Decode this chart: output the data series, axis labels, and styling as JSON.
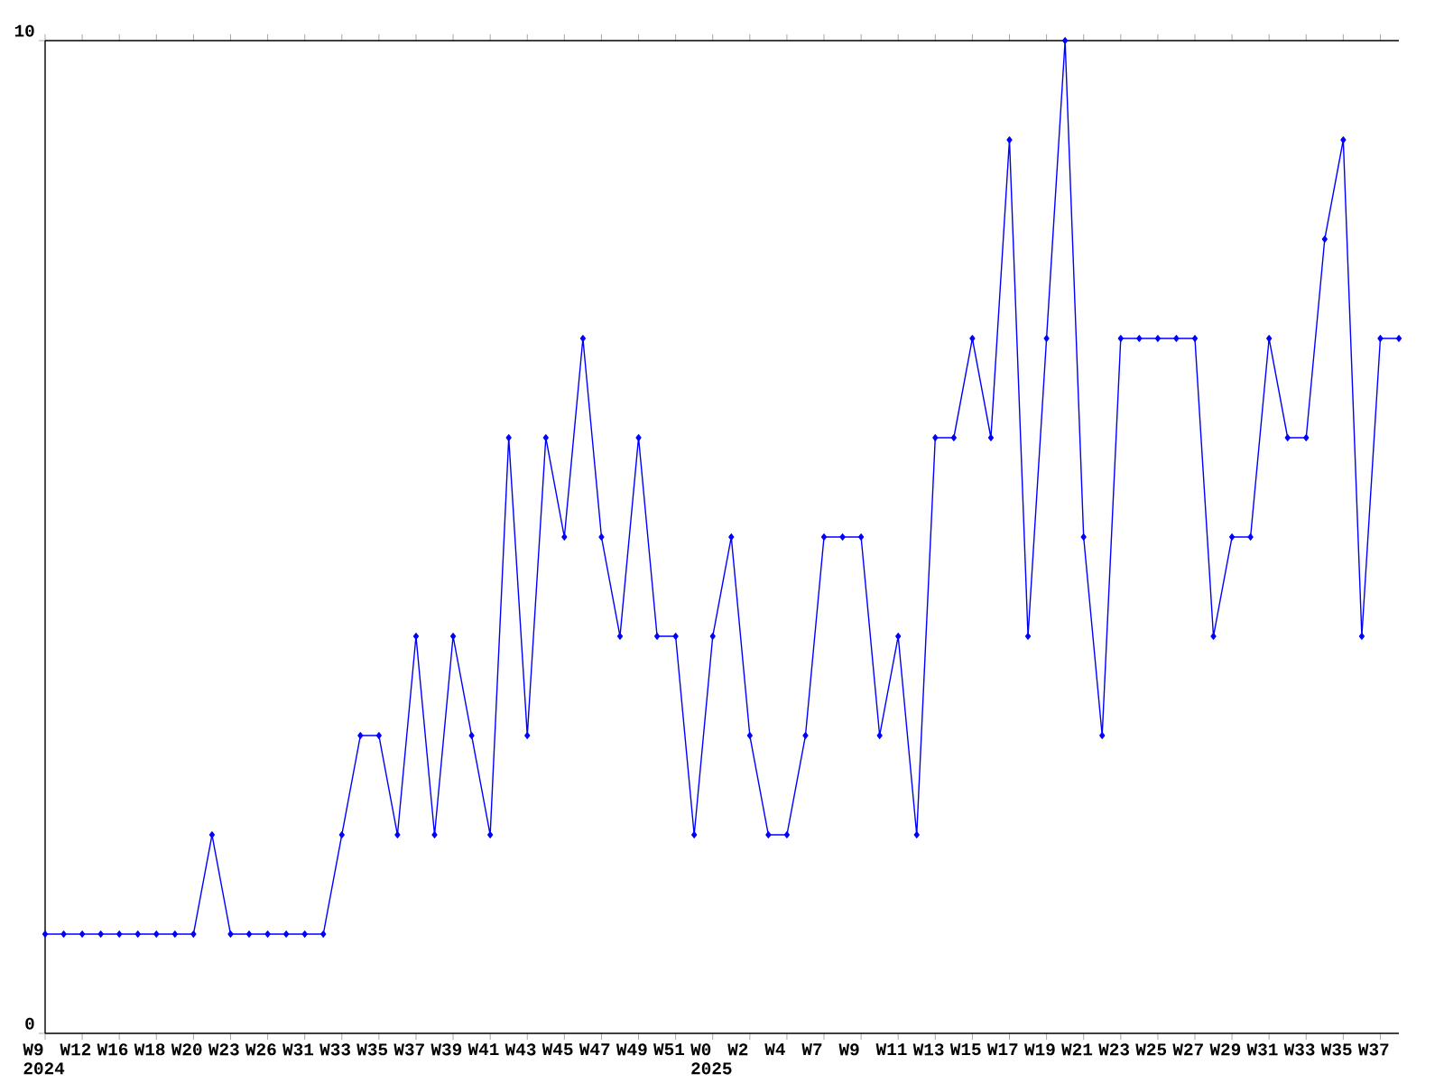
{
  "chart_data": {
    "type": "line",
    "categories": [
      "W9 2024",
      null,
      "W12",
      null,
      "W16",
      null,
      "W18",
      null,
      "W20",
      null,
      "W23",
      null,
      "W26",
      null,
      "W31",
      null,
      "W33",
      null,
      "W35",
      null,
      "W37",
      null,
      "W39",
      null,
      "W41",
      null,
      "W43",
      null,
      "W45",
      null,
      "W47",
      null,
      "W49",
      null,
      "W51",
      null,
      "W0 2025",
      null,
      "W2",
      null,
      "W4",
      null,
      "W7",
      null,
      "W9",
      null,
      "W11",
      null,
      "W13",
      null,
      "W15",
      null,
      "W17",
      null,
      "W19",
      null,
      "W21",
      null,
      "W23",
      null,
      "W25",
      null,
      "W27",
      null,
      "W29",
      null,
      "W31",
      null,
      "W33",
      null,
      "W35",
      null,
      "W37",
      null
    ],
    "series": [
      {
        "color": "#0000ff",
        "values": [
          1,
          1,
          1,
          1,
          1,
          1,
          1,
          1,
          1,
          2,
          1,
          1,
          1,
          1,
          1,
          1,
          2,
          3,
          3,
          2,
          4,
          2,
          4,
          3,
          2,
          6,
          3,
          6,
          5,
          7,
          5,
          4,
          6,
          4,
          4,
          2,
          4,
          5,
          3,
          2,
          2,
          3,
          5,
          5,
          5,
          3,
          4,
          2,
          6,
          6,
          7,
          6,
          9,
          4,
          7,
          10,
          5,
          3,
          7,
          7,
          7,
          7,
          7,
          4,
          5,
          5,
          7,
          6,
          6,
          8,
          9,
          4,
          7,
          7
        ]
      }
    ],
    "ylim": [
      0,
      10
    ],
    "yticks": [
      0,
      10
    ],
    "marker": "diamond",
    "line_style": "solid"
  }
}
